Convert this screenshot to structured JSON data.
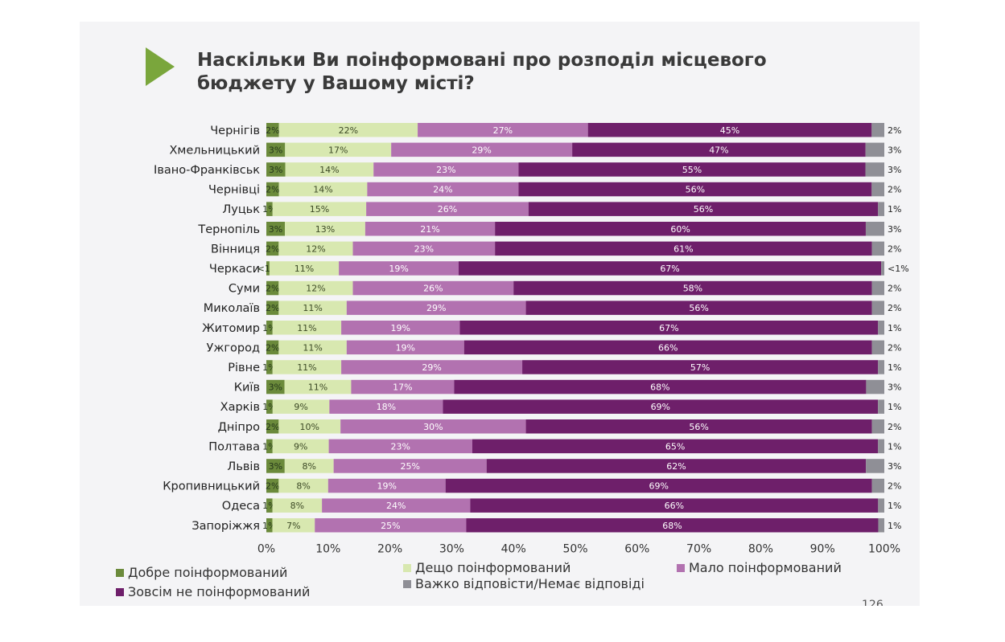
{
  "title": {
    "line1": "Наскільки Ви поінформовані про розподіл місцевого",
    "line2": "бюджету у Вашому місті?"
  },
  "colors": {
    "title_arrow": "#7aa63c",
    "well": "#6b8a3b",
    "somewhat": "#d8e8b0",
    "little": "#b272b0",
    "not": "#6e1f6a",
    "hard": "#8f8f96"
  },
  "chart_data": {
    "type": "bar",
    "orientation": "horizontal",
    "stacked": true,
    "xlim": [
      0,
      100
    ],
    "x_ticks": [
      "0%",
      "10%",
      "20%",
      "30%",
      "40%",
      "50%",
      "60%",
      "70%",
      "80%",
      "90%",
      "100%"
    ],
    "categories": [
      "Чернігів",
      "Хмельницький",
      "Івано-Франківськ",
      "Чернівці",
      "Луцьк",
      "Тернопіль",
      "Вінниця",
      "Черкаси",
      "Суми",
      "Миколаїв",
      "Житомир",
      "Ужгород",
      "Рівне",
      "Київ",
      "Харків",
      "Дніпро",
      "Полтава",
      "Львів",
      "Кропивницький",
      "Одеса",
      "Запоріжжя"
    ],
    "series": [
      {
        "name": "Добре поінформований",
        "values": [
          2,
          3,
          3,
          2,
          1,
          3,
          2,
          0.5,
          2,
          2,
          1,
          2,
          1,
          3,
          1,
          2,
          1,
          3,
          2,
          1,
          1
        ],
        "labels": [
          "2%",
          "3%",
          "3%",
          "2%",
          "1%",
          "3%",
          "2%",
          "<1%",
          "2%",
          "2%",
          "1%",
          "2%",
          "1%",
          "3%",
          "1%",
          "2%",
          "1%",
          "3%",
          "2%",
          "1%",
          "1%"
        ]
      },
      {
        "name": "Дещо поінформований",
        "values": [
          22,
          17,
          14,
          14,
          15,
          13,
          12,
          11,
          12,
          11,
          11,
          11,
          11,
          11,
          9,
          10,
          9,
          8,
          8,
          8,
          7
        ],
        "labels": [
          "22%",
          "17%",
          "14%",
          "14%",
          "15%",
          "13%",
          "12%",
          "11%",
          "12%",
          "11%",
          "11%",
          "11%",
          "11%",
          "11%",
          "9%",
          "10%",
          "9%",
          "8%",
          "8%",
          "8%",
          "7%"
        ]
      },
      {
        "name": "Мало поінформований",
        "values": [
          27,
          29,
          23,
          24,
          26,
          21,
          23,
          19,
          26,
          29,
          19,
          19,
          29,
          17,
          18,
          30,
          23,
          25,
          19,
          24,
          25
        ],
        "labels": [
          "27%",
          "29%",
          "23%",
          "24%",
          "26%",
          "21%",
          "23%",
          "19%",
          "26%",
          "29%",
          "19%",
          "19%",
          "29%",
          "17%",
          "18%",
          "30%",
          "23%",
          "25%",
          "19%",
          "24%",
          "25%"
        ]
      },
      {
        "name": "Зовсім не поінформований",
        "values": [
          45,
          47,
          55,
          56,
          56,
          60,
          61,
          67,
          58,
          56,
          67,
          66,
          57,
          68,
          69,
          56,
          65,
          62,
          69,
          66,
          68
        ],
        "labels": [
          "45%",
          "47%",
          "55%",
          "56%",
          "56%",
          "60%",
          "61%",
          "67%",
          "58%",
          "56%",
          "67%",
          "66%",
          "57%",
          "68%",
          "69%",
          "56%",
          "65%",
          "62%",
          "69%",
          "66%",
          "68%"
        ]
      },
      {
        "name": "Важко відповісти/Немає відповіді",
        "values": [
          2,
          3,
          3,
          2,
          1,
          3,
          2,
          0.5,
          2,
          2,
          1,
          2,
          1,
          3,
          1,
          2,
          1,
          3,
          2,
          1,
          1
        ],
        "labels": [
          "2%",
          "3%",
          "3%",
          "2%",
          "1%",
          "3%",
          "2%",
          "<1%",
          "2%",
          "2%",
          "1%",
          "2%",
          "1%",
          "3%",
          "1%",
          "2%",
          "1%",
          "3%",
          "2%",
          "1%",
          "1%"
        ]
      }
    ],
    "legend_position": "bottom",
    "grid": false
  },
  "legend": {
    "well": "Добре поінформований",
    "somewhat": "Дещо поінформований",
    "little": "Мало поінформований",
    "not": "Зовсім не поінформований",
    "hard": "Важко відповісти/Немає відповіді"
  },
  "page_number": "126"
}
